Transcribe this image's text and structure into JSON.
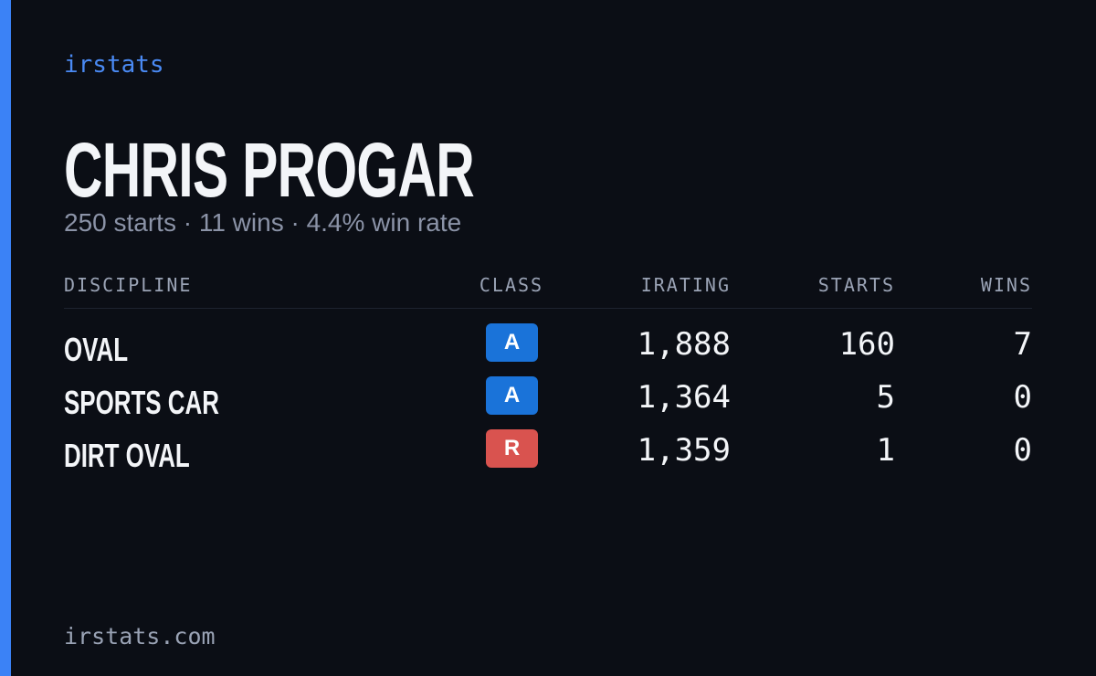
{
  "header": {
    "brand": "irstats",
    "name": "CHRIS PROGAR",
    "summary": "250 starts · 11 wins · 4.4% win rate"
  },
  "table": {
    "columns": [
      "DISCIPLINE",
      "CLASS",
      "IRATING",
      "STARTS",
      "WINS"
    ],
    "rows": [
      {
        "discipline": "OVAL",
        "class": "A",
        "class_color": "#1a73d9",
        "irating": "1,888",
        "starts": "160",
        "wins": "7"
      },
      {
        "discipline": "SPORTS CAR",
        "class": "A",
        "class_color": "#1a73d9",
        "irating": "1,364",
        "starts": "5",
        "wins": "0"
      },
      {
        "discipline": "DIRT OVAL",
        "class": "R",
        "class_color": "#d9534f",
        "irating": "1,359",
        "starts": "1",
        "wins": "0"
      }
    ]
  },
  "footer": {
    "site": "irstats.com"
  }
}
